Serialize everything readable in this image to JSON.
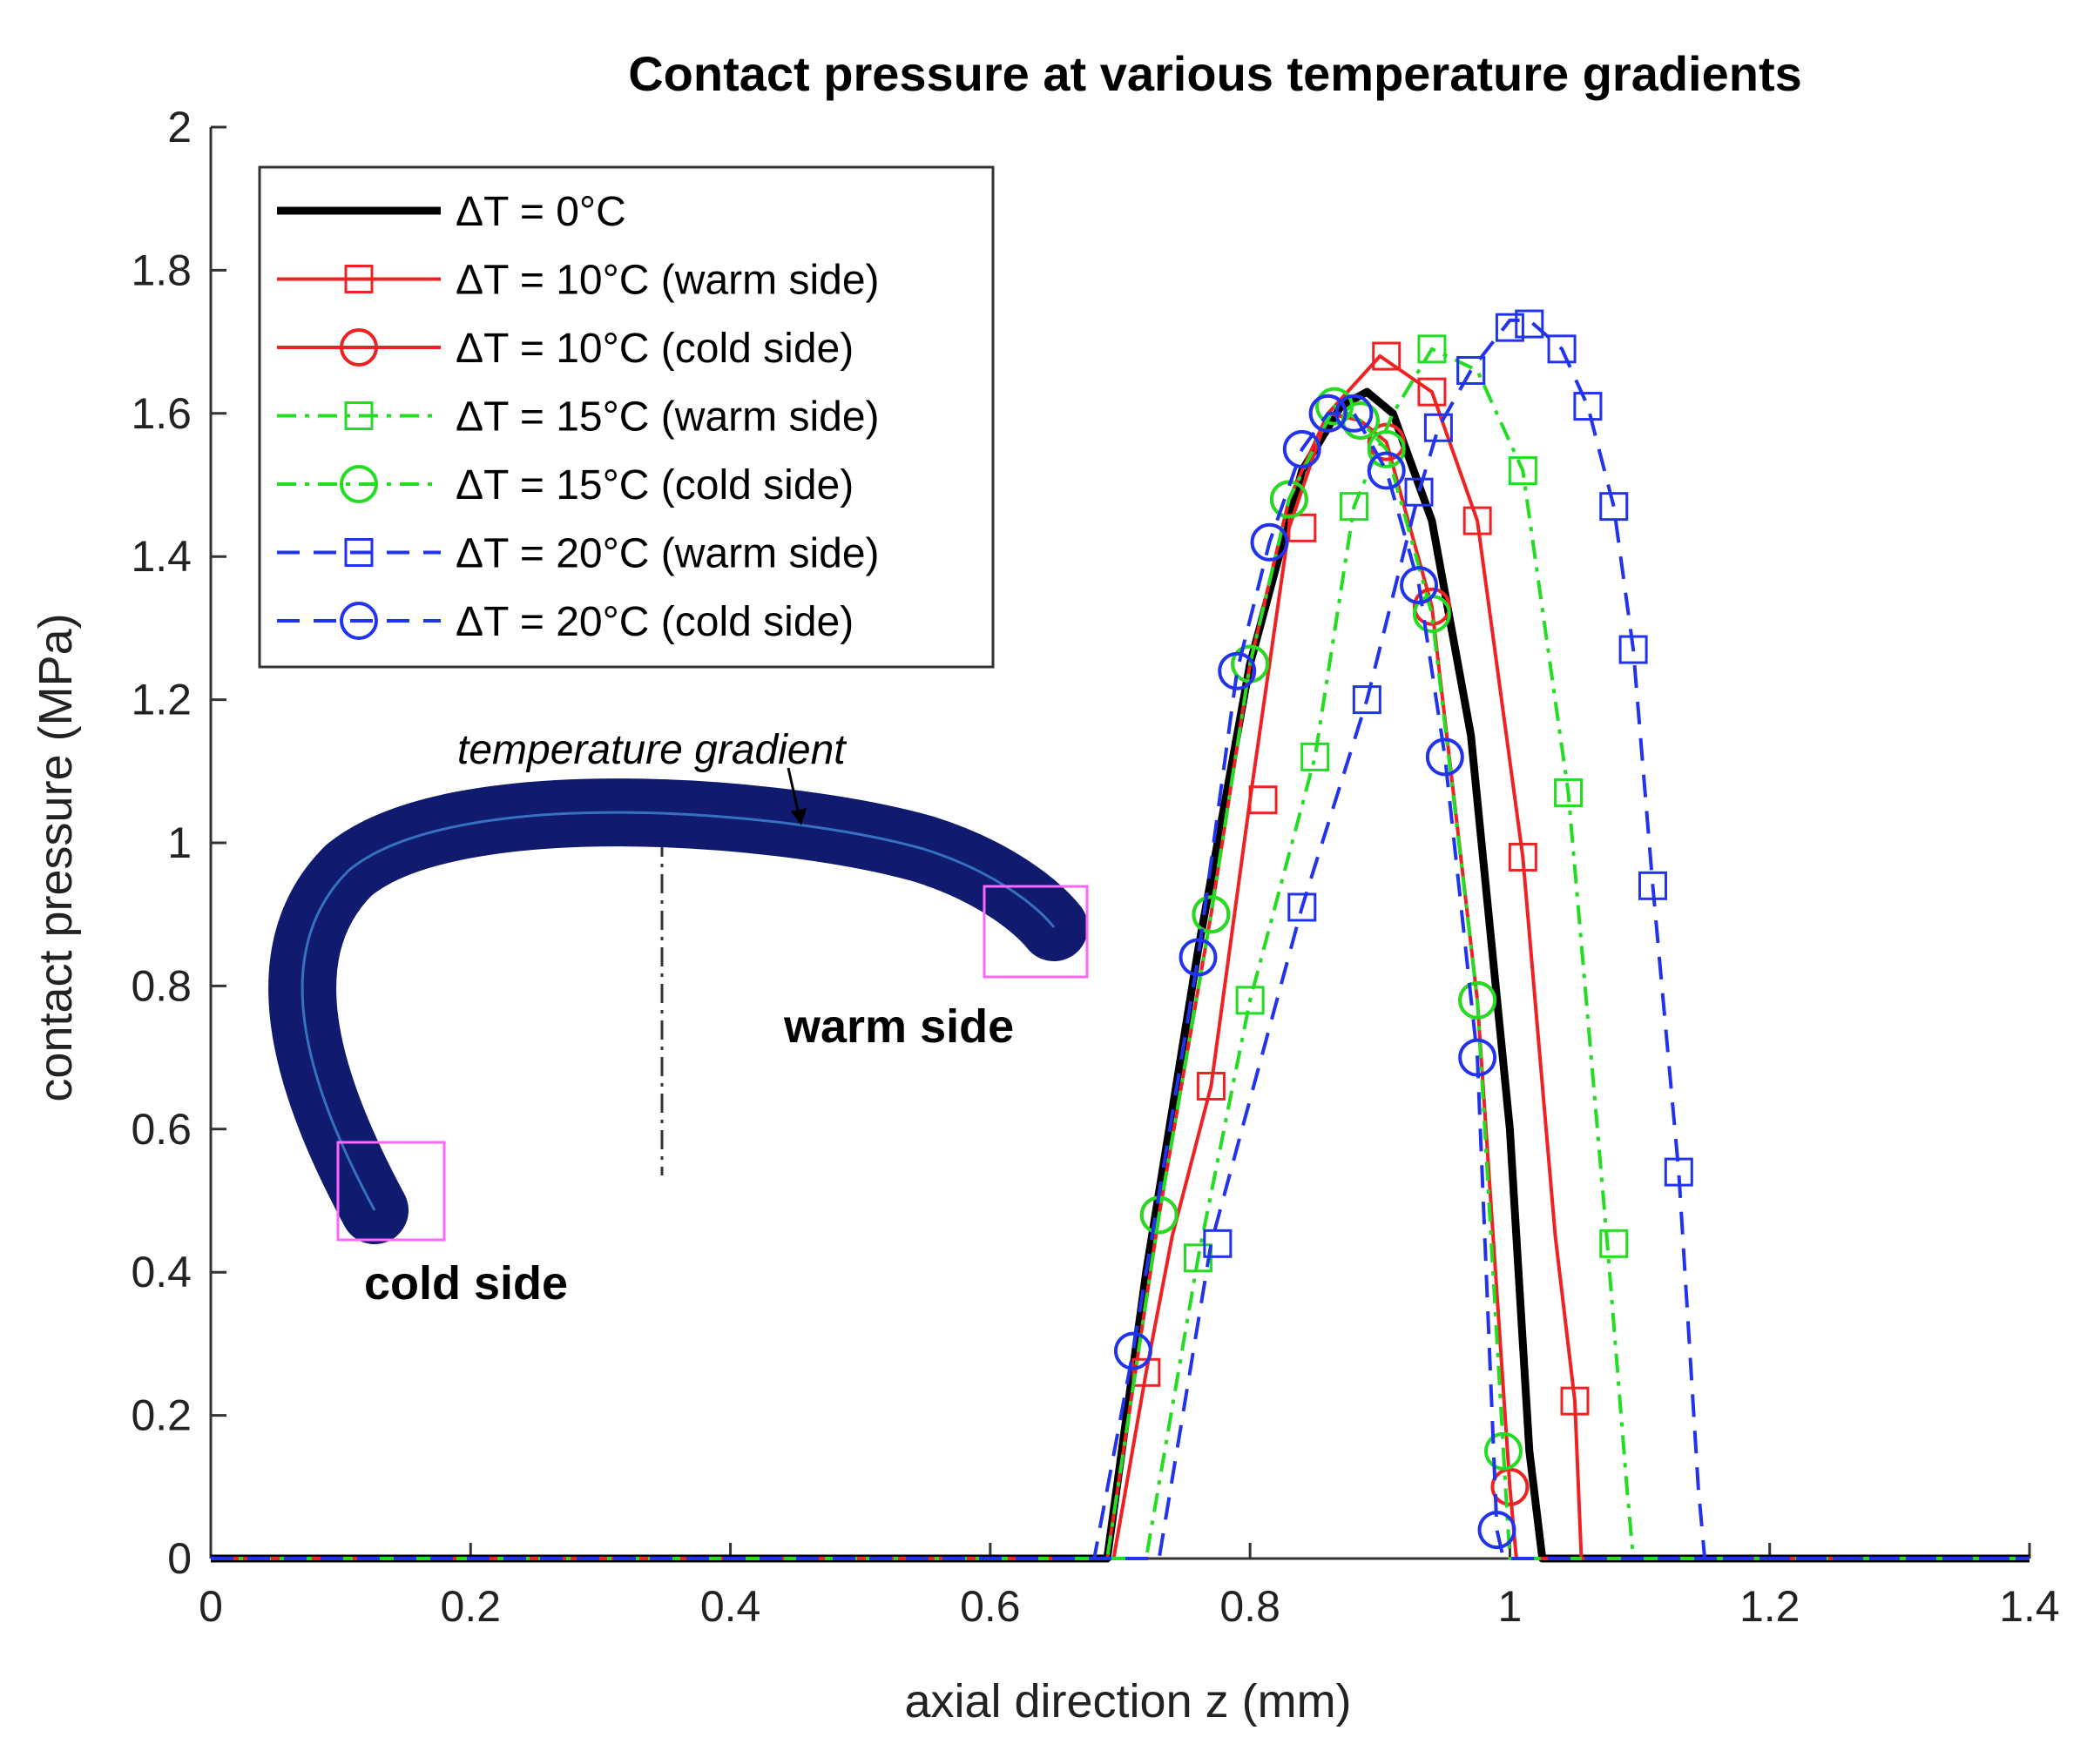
{
  "chart_data": {
    "type": "line",
    "title": "Contact pressure at various temperature gradients",
    "xlabel": "axial direction z (mm)",
    "ylabel": "contact pressure (MPa)",
    "xlim": [
      0,
      1.4
    ],
    "ylim": [
      0,
      2
    ],
    "xticks": [
      "0",
      "0.2",
      "0.4",
      "0.6",
      "0.8",
      "1",
      "1.2",
      "1.4"
    ],
    "yticks": [
      "0",
      "0.2",
      "0.4",
      "0.6",
      "0.8",
      "1",
      "1.2",
      "1.4",
      "1.6",
      "1.8",
      "2"
    ],
    "grid": false,
    "legend_position": "top-left",
    "series": [
      {
        "name": "ΔT = 0°C",
        "color": "#000000",
        "dash": "solid",
        "marker": "none",
        "width": "bold",
        "x": [
          0,
          0.69,
          0.72,
          0.76,
          0.8,
          0.84,
          0.87,
          0.89,
          0.91,
          0.94,
          0.97,
          1.0,
          1.015,
          1.025,
          1.4
        ],
        "y": [
          0,
          0,
          0.4,
          0.85,
          1.25,
          1.52,
          1.61,
          1.63,
          1.6,
          1.45,
          1.15,
          0.6,
          0.15,
          0,
          0
        ]
      },
      {
        "name": "ΔT = 10°C (warm side)",
        "color": "#ee2222",
        "dash": "solid",
        "marker": "square",
        "x": [
          0,
          0.695,
          0.72,
          0.74,
          0.77,
          0.8,
          0.83,
          0.86,
          0.9,
          0.94,
          0.975,
          1.01,
          1.035,
          1.05,
          1.055,
          1.4
        ],
        "y": [
          0,
          0,
          0.26,
          0.45,
          0.66,
          1.06,
          1.44,
          1.6,
          1.68,
          1.63,
          1.45,
          0.98,
          0.45,
          0.22,
          0,
          0
        ],
        "marker_x": [
          0.72,
          0.77,
          0.81,
          0.84,
          0.905,
          0.94,
          0.975,
          1.01,
          1.05
        ],
        "marker_y": [
          0.26,
          0.66,
          1.06,
          1.44,
          1.68,
          1.63,
          1.45,
          0.98,
          0.22
        ]
      },
      {
        "name": "ΔT = 10°C (cold side)",
        "color": "#ee2222",
        "dash": "solid",
        "marker": "circle",
        "x": [
          0,
          0.69,
          0.73,
          0.77,
          0.8,
          0.83,
          0.86,
          0.885,
          0.905,
          0.94,
          0.975,
          1.0,
          1.005,
          1.4
        ],
        "y": [
          0,
          0,
          0.48,
          0.9,
          1.25,
          1.48,
          1.6,
          1.59,
          1.56,
          1.33,
          0.78,
          0.1,
          0,
          0
        ]
      },
      {
        "name": "ΔT = 15°C (warm side)",
        "color": "#22dd22",
        "dash": "dashdot",
        "marker": "square",
        "x": [
          0,
          0.72,
          0.76,
          0.8,
          0.85,
          0.88,
          0.91,
          0.94,
          0.975,
          1.01,
          1.045,
          1.075,
          1.09,
          1.095,
          1.4
        ],
        "y": [
          0,
          0,
          0.42,
          0.78,
          1.12,
          1.47,
          1.6,
          1.69,
          1.66,
          1.52,
          1.07,
          0.44,
          0.1,
          0,
          0
        ],
        "marker_x": [
          0.76,
          0.8,
          0.85,
          0.88,
          0.94,
          0.97,
          1.01,
          1.045,
          1.08
        ],
        "marker_y": [
          0.42,
          0.78,
          1.12,
          1.47,
          1.69,
          1.66,
          1.52,
          1.07,
          0.44
        ]
      },
      {
        "name": "ΔT = 15°C (cold side)",
        "color": "#22dd22",
        "dash": "dashdot",
        "marker": "circle",
        "x": [
          0,
          0.69,
          0.73,
          0.77,
          0.8,
          0.83,
          0.865,
          0.885,
          0.905,
          0.94,
          0.975,
          0.995,
          1.0,
          1.4
        ],
        "y": [
          0,
          0,
          0.48,
          0.9,
          1.25,
          1.48,
          1.61,
          1.59,
          1.55,
          1.32,
          0.78,
          0.15,
          0,
          0
        ]
      },
      {
        "name": "ΔT = 20°C (warm side)",
        "color": "#2233ee",
        "dash": "dash",
        "marker": "square",
        "x": [
          0,
          0.73,
          0.77,
          0.84,
          0.89,
          0.93,
          0.945,
          0.97,
          1.0,
          1.015,
          1.04,
          1.06,
          1.08,
          1.095,
          1.11,
          1.13,
          1.145,
          1.15,
          1.4
        ],
        "y": [
          0,
          0,
          0.44,
          0.91,
          1.2,
          1.49,
          1.58,
          1.66,
          1.73,
          1.73,
          1.69,
          1.61,
          1.47,
          1.27,
          0.94,
          0.54,
          0.1,
          0,
          0
        ],
        "marker_x": [
          0.775,
          0.84,
          0.89,
          0.93,
          0.945,
          0.97,
          1.0,
          1.015,
          1.04,
          1.06,
          1.08,
          1.095,
          1.11,
          1.13
        ],
        "marker_y": [
          0.44,
          0.91,
          1.2,
          1.49,
          1.58,
          1.66,
          1.72,
          1.725,
          1.69,
          1.61,
          1.47,
          1.27,
          0.94,
          0.54
        ]
      },
      {
        "name": "ΔT = 20°C (cold side)",
        "color": "#2233ee",
        "dash": "dash",
        "marker": "circle",
        "x": [
          0,
          0.68,
          0.71,
          0.76,
          0.79,
          0.815,
          0.84,
          0.86,
          0.88,
          0.905,
          0.93,
          0.95,
          0.975,
          0.99,
          0.995,
          1.4
        ],
        "y": [
          0,
          0,
          0.29,
          0.84,
          1.24,
          1.42,
          1.55,
          1.6,
          1.6,
          1.52,
          1.36,
          1.12,
          0.7,
          0.04,
          0,
          0
        ]
      }
    ],
    "annotations": {
      "temperature_gradient": "temperature gradient",
      "warm_side": "warm side",
      "cold_side": "cold side"
    }
  }
}
